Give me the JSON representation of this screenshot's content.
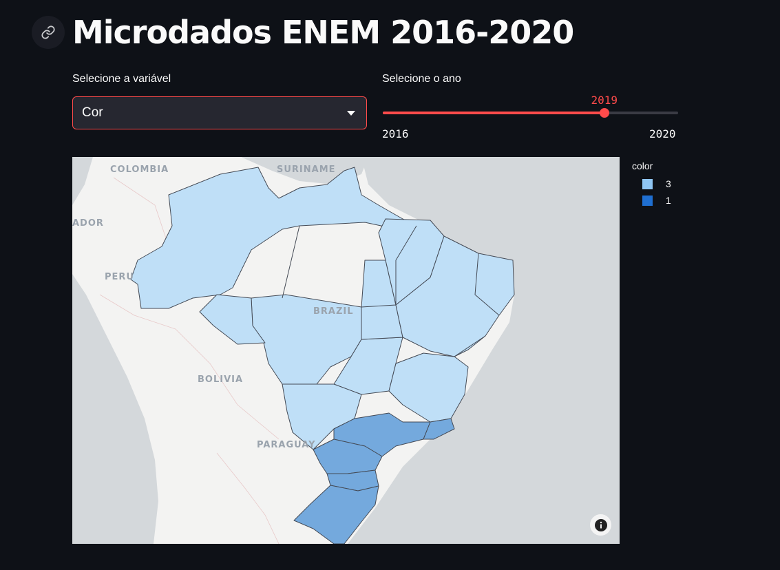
{
  "header": {
    "title": "Microdados ENEM 2016-2020"
  },
  "controls": {
    "variable_label": "Selecione a variável",
    "variable_value": "Cor",
    "year_label": "Selecione o ano",
    "year_value": "2019",
    "year_min": "2016",
    "year_max": "2020",
    "year_fraction": 0.75
  },
  "map": {
    "labels": {
      "colombia": "COLOMBIA",
      "suriname": "SURINAME",
      "ecuador": "ADOR",
      "peru": "PERU",
      "brazil": "BRAZIL",
      "bolivia": "BOLIVIA",
      "paraguay": "PARAGUAY"
    },
    "colors": {
      "category_3": "#bfdff7",
      "category_1": "#74a9dd",
      "ocean": "#d4d8db",
      "land": "#f3f3f2",
      "border": "#444a55"
    }
  },
  "legend": {
    "title": "color",
    "items": [
      {
        "label": "3",
        "color": "#8fc5f2"
      },
      {
        "label": "1",
        "color": "#1f6fd1"
      }
    ]
  }
}
